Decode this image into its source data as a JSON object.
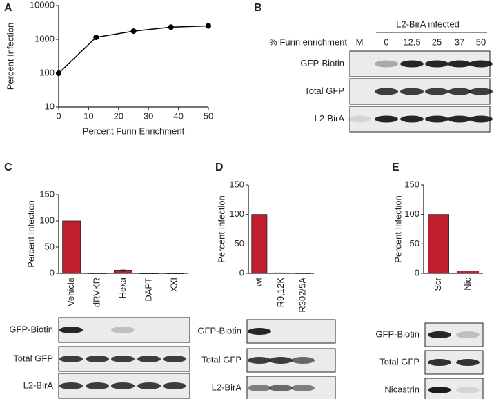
{
  "chart_data": [
    {
      "type": "line",
      "x": [
        0,
        12.5,
        25,
        37.5,
        50
      ],
      "values": [
        100,
        1150,
        1750,
        2300,
        2500
      ],
      "color": "#000000",
      "xlim": [
        0,
        50
      ],
      "xticks": [
        0,
        10,
        20,
        30,
        40,
        50
      ],
      "ylim": [
        10,
        10000
      ],
      "yticks": [
        10,
        100,
        1000,
        10000
      ],
      "yscale": "log",
      "xlabel": "Percent Furin Enrichment",
      "ylabel": "Percent Infection"
    },
    {
      "type": "bar",
      "categories": [
        "Vehicle",
        "dRVKR",
        "Hexa",
        "DAPT",
        "XXI"
      ],
      "values": [
        100,
        0.5,
        6,
        0.3,
        0.3
      ],
      "errors": [
        null,
        null,
        2,
        null,
        null
      ],
      "color": "#c0202e",
      "ylim": [
        0,
        150
      ],
      "yticks": [
        0,
        50,
        100,
        150
      ],
      "ylabel": "Percent Infection"
    },
    {
      "type": "bar",
      "categories": [
        "wt",
        "R9,12K",
        "R302/5A"
      ],
      "values": [
        100,
        0.8,
        0.5
      ],
      "color": "#c0202e",
      "ylim": [
        0,
        150
      ],
      "yticks": [
        0,
        50,
        100,
        150
      ],
      "ylabel": "Percent Infection"
    },
    {
      "type": "bar",
      "categories": [
        "Scr",
        "Nic"
      ],
      "values": [
        100,
        4
      ],
      "color": "#c0202e",
      "ylim": [
        0,
        150
      ],
      "yticks": [
        0,
        50,
        100,
        150
      ],
      "ylabel": "Percent Infection"
    }
  ],
  "panels": [
    "A",
    "B",
    "C",
    "D",
    "E"
  ],
  "blot_b": {
    "header": "L2-BirA infected",
    "axis_label": "% Furin enrichment",
    "lanes": [
      "M",
      "0",
      "12.5",
      "25",
      "37",
      "50"
    ],
    "rows": [
      "GFP-Biotin",
      "Total GFP",
      "L2-BirA"
    ]
  },
  "blot_c": {
    "rows": [
      "GFP-Biotin",
      "Total GFP",
      "L2-BirA"
    ]
  },
  "blot_d": {
    "rows": [
      "GFP-Biotin",
      "Total GFP",
      "L2-BirA"
    ]
  },
  "blot_e": {
    "rows": [
      "GFP-Biotin",
      "Total GFP",
      "Nicastrin"
    ]
  }
}
